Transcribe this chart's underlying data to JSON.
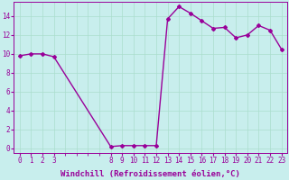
{
  "x": [
    0,
    1,
    2,
    3,
    8,
    9,
    10,
    11,
    12,
    13,
    14,
    15,
    16,
    17,
    18,
    19,
    20,
    21,
    22,
    23
  ],
  "y": [
    9.8,
    10.0,
    10.0,
    9.7,
    0.2,
    0.3,
    0.3,
    0.3,
    0.3,
    13.7,
    15.0,
    14.3,
    13.5,
    12.7,
    12.8,
    11.7,
    12.0,
    13.0,
    12.5,
    10.5
  ],
  "line_color": "#990099",
  "bg_color": "#c8eeed",
  "grid_color": "#aaddcc",
  "xlabel": "Windchill (Refroidissement éolien,°C)",
  "xticks": [
    0,
    1,
    2,
    3,
    8,
    9,
    10,
    11,
    12,
    13,
    14,
    15,
    16,
    17,
    18,
    19,
    20,
    21,
    22,
    23
  ],
  "yticks": [
    0,
    2,
    4,
    6,
    8,
    10,
    12,
    14
  ],
  "ylim": [
    -0.5,
    15.5
  ],
  "xlim": [
    -0.5,
    23.5
  ],
  "marker": "D",
  "marker_size": 2.0,
  "linewidth": 1.0,
  "xlabel_fontsize": 6.5,
  "tick_fontsize": 5.5,
  "grid_major_x": [
    0,
    1,
    2,
    3,
    4,
    5,
    6,
    7,
    8,
    9,
    10,
    11,
    12,
    13,
    14,
    15,
    16,
    17,
    18,
    19,
    20,
    21,
    22,
    23
  ],
  "grid_major_y": [
    0,
    2,
    4,
    6,
    8,
    10,
    12,
    14
  ]
}
